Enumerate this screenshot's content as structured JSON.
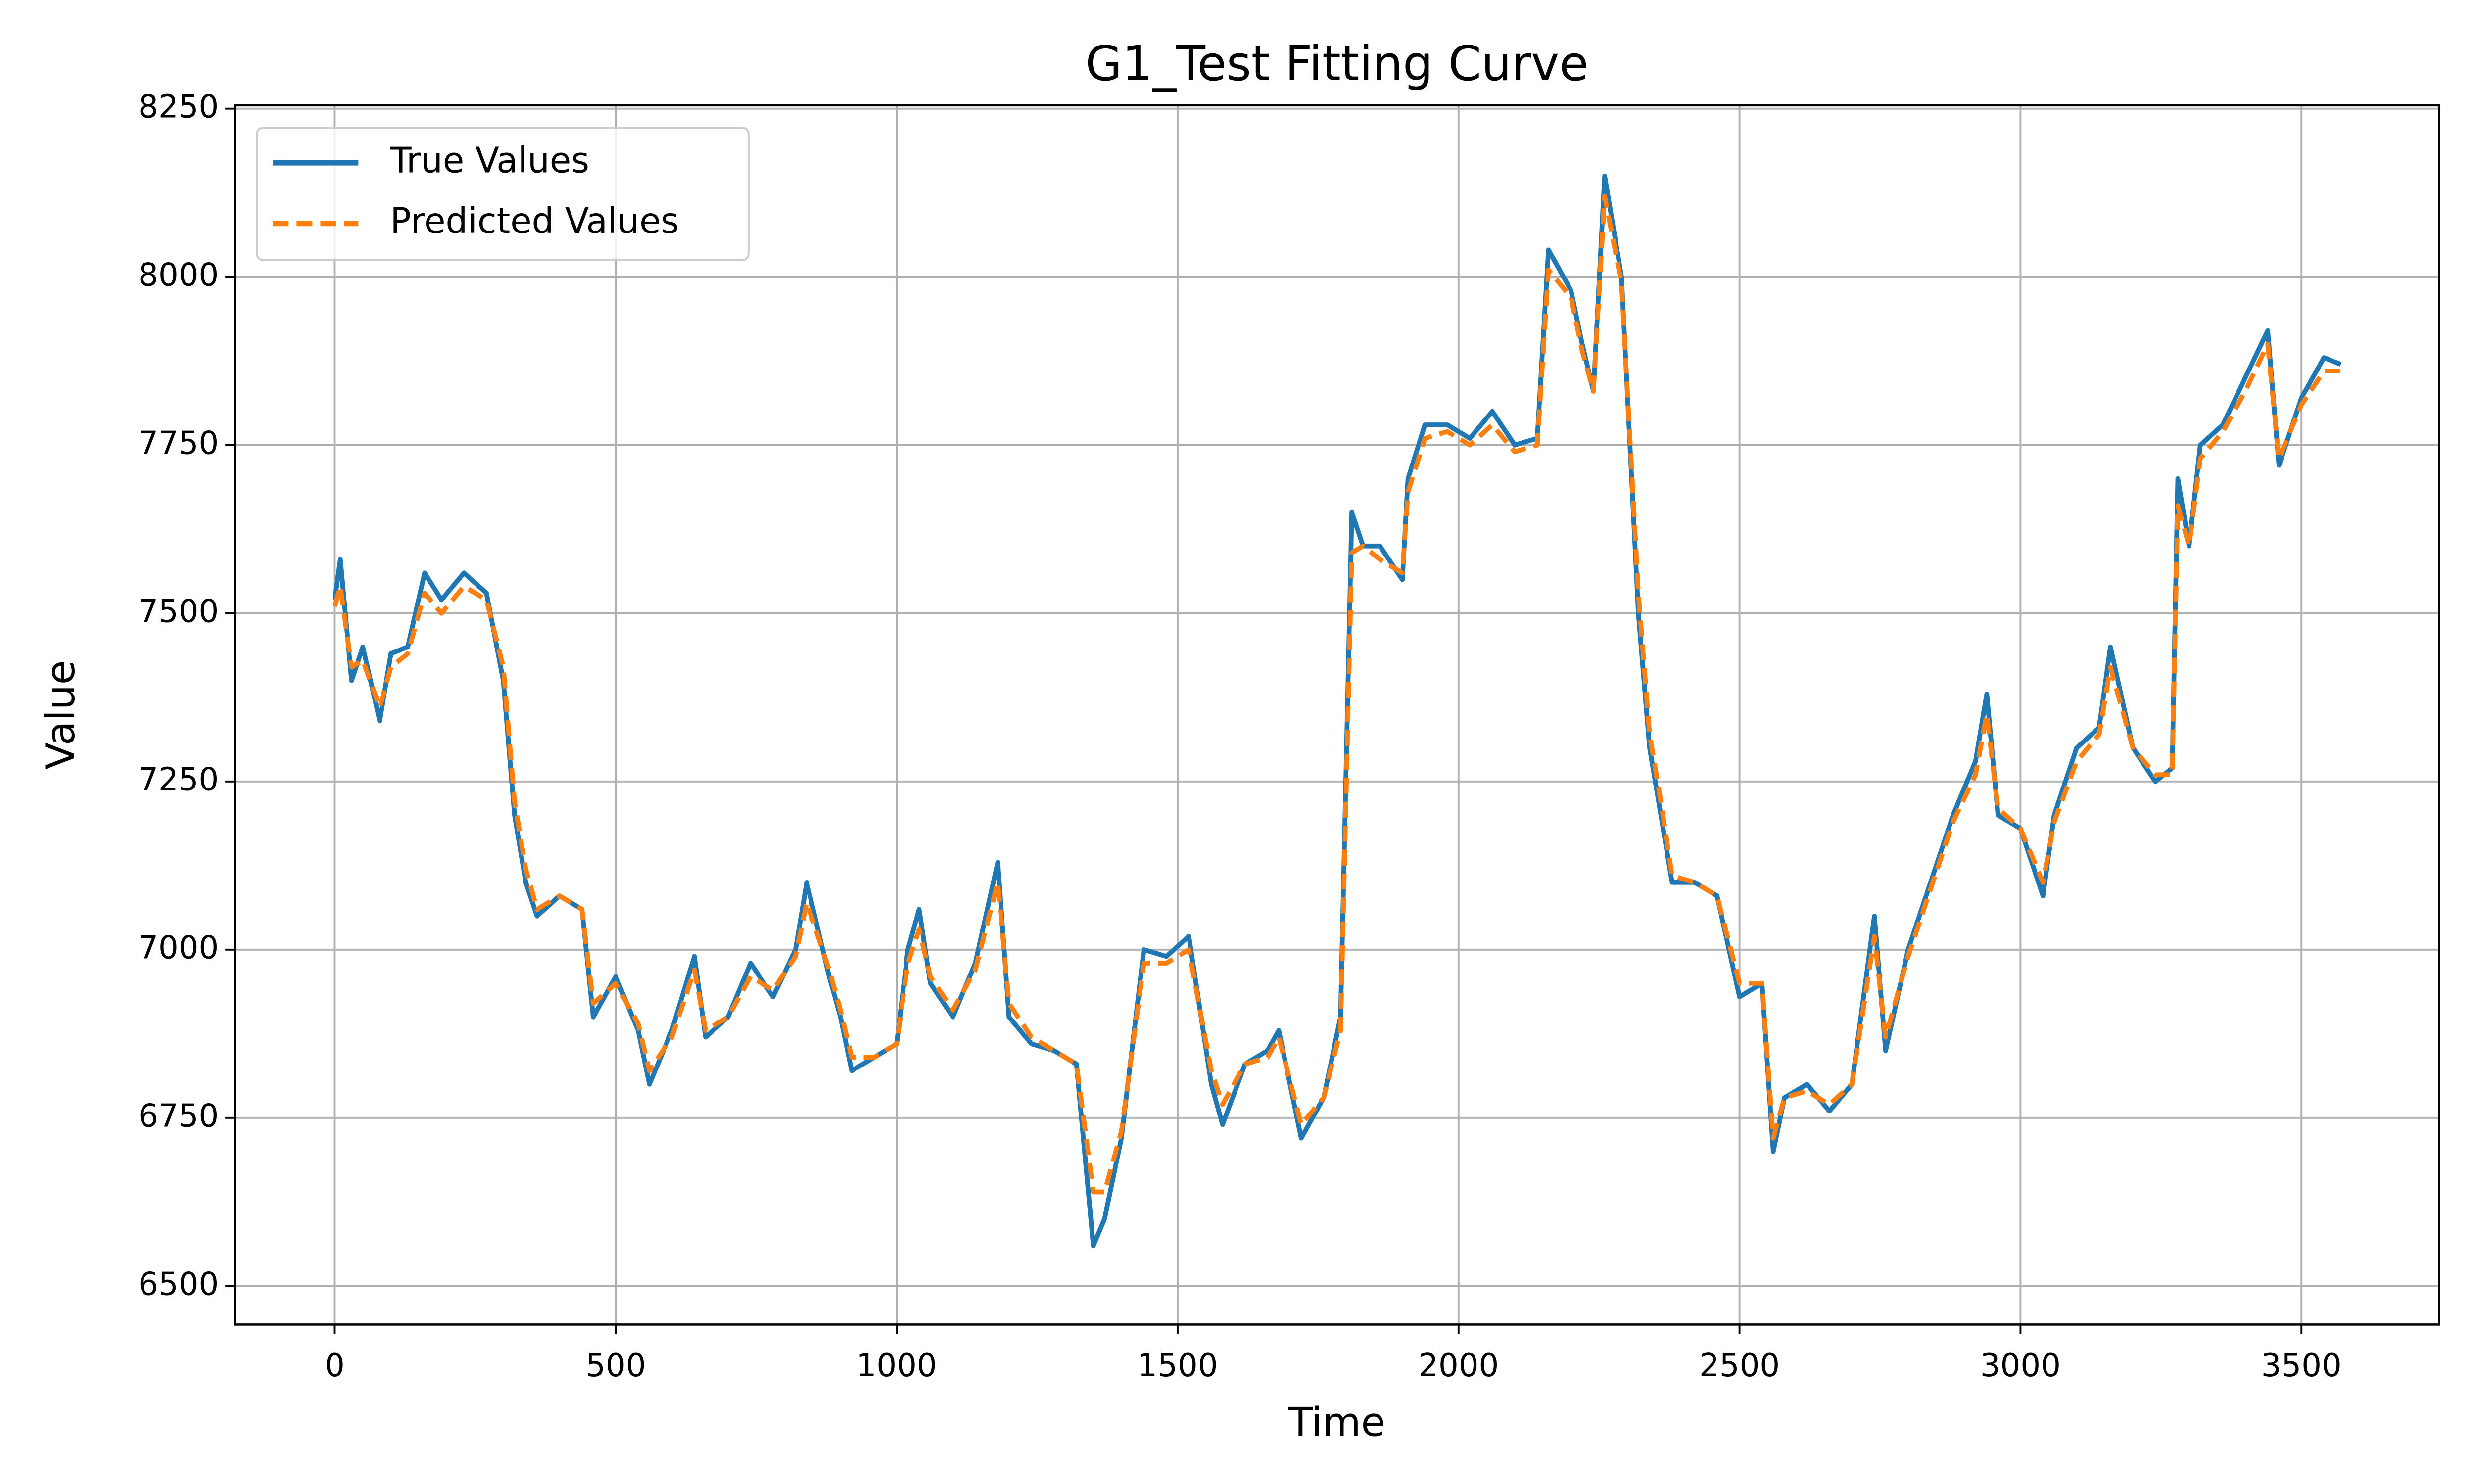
{
  "chart_data": {
    "type": "line",
    "title": "G1_Test Fitting Curve",
    "x_label": "Time",
    "y_label": "Value",
    "x": [
      0,
      10,
      30,
      50,
      80,
      100,
      130,
      160,
      190,
      230,
      270,
      300,
      320,
      340,
      360,
      400,
      440,
      460,
      500,
      540,
      560,
      600,
      640,
      660,
      700,
      740,
      780,
      820,
      840,
      880,
      900,
      920,
      960,
      1000,
      1020,
      1040,
      1060,
      1100,
      1140,
      1180,
      1200,
      1240,
      1280,
      1320,
      1350,
      1370,
      1400,
      1440,
      1480,
      1520,
      1560,
      1580,
      1620,
      1660,
      1680,
      1720,
      1760,
      1790,
      1810,
      1830,
      1860,
      1900,
      1910,
      1940,
      1980,
      2020,
      2060,
      2100,
      2140,
      2160,
      2200,
      2220,
      2240,
      2260,
      2290,
      2320,
      2340,
      2360,
      2380,
      2420,
      2460,
      2500,
      2540,
      2560,
      2580,
      2620,
      2660,
      2700,
      2740,
      2760,
      2800,
      2840,
      2880,
      2920,
      2940,
      2960,
      3000,
      3040,
      3060,
      3100,
      3140,
      3160,
      3200,
      3240,
      3270,
      3280,
      3300,
      3320,
      3360,
      3400,
      3440,
      3460,
      3500,
      3540,
      3570
    ],
    "series": [
      {
        "name": "True Values",
        "color": "#1f77b4",
        "dashed": false,
        "values": [
          7520,
          7580,
          7400,
          7450,
          7340,
          7440,
          7450,
          7560,
          7520,
          7560,
          7530,
          7400,
          7200,
          7100,
          7050,
          7080,
          7060,
          6900,
          6960,
          6880,
          6800,
          6880,
          6990,
          6870,
          6900,
          6980,
          6930,
          7000,
          7100,
          6960,
          6900,
          6820,
          6840,
          6860,
          7000,
          7060,
          6950,
          6900,
          6980,
          7130,
          6900,
          6860,
          6850,
          6830,
          6560,
          6600,
          6720,
          7000,
          6990,
          7020,
          6800,
          6740,
          6830,
          6850,
          6880,
          6720,
          6780,
          6900,
          7650,
          7600,
          7600,
          7550,
          7700,
          7780,
          7780,
          7760,
          7800,
          7750,
          7760,
          8040,
          7980,
          7900,
          7830,
          8150,
          8000,
          7500,
          7300,
          7200,
          7100,
          7100,
          7080,
          6930,
          6950,
          6700,
          6780,
          6800,
          6760,
          6800,
          7050,
          6850,
          7000,
          7100,
          7200,
          7280,
          7380,
          7200,
          7180,
          7080,
          7200,
          7300,
          7330,
          7450,
          7300,
          7250,
          7270,
          7700,
          7600,
          7750,
          7780,
          7850,
          7920,
          7720,
          7820,
          7880,
          7870
        ]
      },
      {
        "name": "Predicted Values",
        "color": "#ff7f0e",
        "dashed": true,
        "values": [
          7510,
          7540,
          7420,
          7430,
          7360,
          7420,
          7440,
          7530,
          7500,
          7540,
          7520,
          7420,
          7220,
          7120,
          7060,
          7080,
          7060,
          6920,
          6950,
          6890,
          6820,
          6870,
          6970,
          6880,
          6900,
          6960,
          6940,
          6990,
          7070,
          6970,
          6910,
          6840,
          6840,
          6860,
          6980,
          7030,
          6960,
          6910,
          6970,
          7100,
          6920,
          6870,
          6850,
          6830,
          6640,
          6640,
          6730,
          6980,
          6980,
          7000,
          6820,
          6770,
          6830,
          6840,
          6870,
          6740,
          6780,
          6880,
          7590,
          7600,
          7580,
          7560,
          7680,
          7760,
          7770,
          7750,
          7780,
          7740,
          7750,
          8010,
          7970,
          7890,
          7830,
          8120,
          7990,
          7530,
          7320,
          7220,
          7110,
          7100,
          7080,
          6950,
          6950,
          6720,
          6780,
          6790,
          6770,
          6800,
          7020,
          6870,
          6990,
          7090,
          7190,
          7260,
          7350,
          7210,
          7180,
          7100,
          7190,
          7280,
          7320,
          7420,
          7300,
          7260,
          7260,
          7660,
          7600,
          7730,
          7770,
          7830,
          7900,
          7730,
          7810,
          7860,
          7860
        ]
      }
    ],
    "xlim": [
      -178,
      3745
    ],
    "ylim": [
      6443,
      8255
    ],
    "xticks": [
      0,
      500,
      1000,
      1500,
      2000,
      2500,
      3000,
      3500
    ],
    "yticks": [
      6500,
      6750,
      7000,
      7250,
      7500,
      7750,
      8000,
      8250
    ],
    "grid": true,
    "legend": "upper left"
  }
}
